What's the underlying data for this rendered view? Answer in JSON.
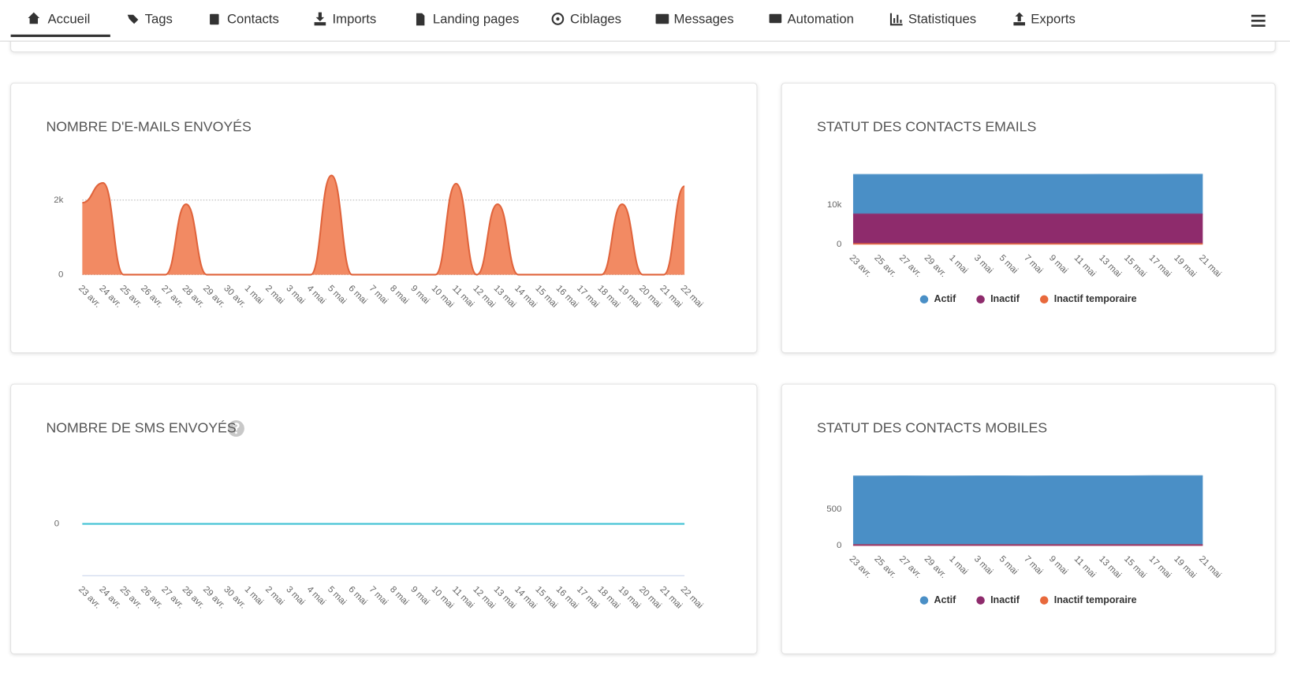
{
  "nav": {
    "items": [
      "Accueil",
      "Tags",
      "Contacts",
      "Imports",
      "Landing pages",
      "Ciblages",
      "Messages",
      "Automation",
      "Statistiques",
      "Exports"
    ]
  },
  "chart_data": [
    {
      "type": "area",
      "title": "NOMBRE D'E-MAILS ENVOYÉS",
      "categories": [
        "23 avr.",
        "24 avr.",
        "25 avr.",
        "26 avr.",
        "27 avr.",
        "28 avr.",
        "29 avr.",
        "30 avr.",
        "1 mai",
        "2 mai",
        "3 mai",
        "4 mai",
        "5 mai",
        "6 mai",
        "7 mai",
        "8 mai",
        "9 mai",
        "10 mai",
        "11 mai",
        "12 mai",
        "13 mai",
        "14 mai",
        "15 mai",
        "16 mai",
        "17 mai",
        "18 mai",
        "19 mai",
        "20 mai",
        "21 mai",
        "22 mai"
      ],
      "values": [
        1930,
        2460,
        0,
        0,
        0,
        1890,
        0,
        0,
        0,
        0,
        0,
        0,
        2660,
        0,
        0,
        0,
        0,
        0,
        2440,
        0,
        1890,
        0,
        0,
        0,
        0,
        0,
        1890,
        0,
        0,
        2370
      ],
      "color": "#f28a63",
      "ylim": [
        0,
        2800
      ],
      "yticks": [
        0,
        {
          "value": 2000,
          "label": "2k"
        }
      ],
      "grid": true
    },
    {
      "type": "area",
      "stacked": true,
      "title": "STATUT DES CONTACTS EMAILS",
      "categories": [
        "23 avr.",
        "25 avr.",
        "27 avr.",
        "29 avr.",
        "1 mai",
        "3 mai",
        "5 mai",
        "7 mai",
        "9 mai",
        "11 mai",
        "13 mai",
        "15 mai",
        "17 mai",
        "19 mai",
        "21 mai"
      ],
      "series": [
        {
          "name": "Actif",
          "color": "#4a8fc6",
          "values": [
            10000,
            10000,
            10000,
            10000,
            10000,
            10000,
            10000,
            10020,
            10020,
            10020,
            10040,
            10040,
            10040,
            10060,
            10060
          ]
        },
        {
          "name": "Inactif",
          "color": "#8e2b6c",
          "values": [
            7500,
            7500,
            7500,
            7500,
            7500,
            7500,
            7500,
            7500,
            7500,
            7500,
            7500,
            7500,
            7500,
            7500,
            7500
          ]
        },
        {
          "name": "Inactif temporaire",
          "color": "#e8693c",
          "values": [
            100,
            100,
            100,
            100,
            100,
            100,
            100,
            100,
            100,
            100,
            100,
            100,
            100,
            100,
            100
          ]
        }
      ],
      "ylim": [
        0,
        20000
      ],
      "yticks": [
        0,
        {
          "value": 10000,
          "label": "10k"
        }
      ],
      "grid": false
    },
    {
      "type": "line",
      "title": "NOMBRE DE SMS ENVOYÉS",
      "categories": [
        "23 avr.",
        "24 avr.",
        "25 avr.",
        "26 avr.",
        "27 avr.",
        "28 avr.",
        "29 avr.",
        "30 avr.",
        "1 mai",
        "2 mai",
        "3 mai",
        "4 mai",
        "5 mai",
        "6 mai",
        "7 mai",
        "8 mai",
        "9 mai",
        "10 mai",
        "11 mai",
        "12 mai",
        "13 mai",
        "14 mai",
        "15 mai",
        "16 mai",
        "17 mai",
        "18 mai",
        "19 mai",
        "20 mai",
        "21 mai",
        "22 mai"
      ],
      "values": [
        0,
        0,
        0,
        0,
        0,
        0,
        0,
        0,
        0,
        0,
        0,
        0,
        0,
        0,
        0,
        0,
        0,
        0,
        0,
        0,
        0,
        0,
        0,
        0,
        0,
        0,
        0,
        0,
        0,
        0
      ],
      "color": "#3ec1d3",
      "ylim": [
        -1,
        1
      ],
      "yticks": [
        0
      ],
      "grid": false
    },
    {
      "type": "area",
      "stacked": true,
      "title": "STATUT DES CONTACTS MOBILES",
      "categories": [
        "23 avr.",
        "25 avr.",
        "27 avr.",
        "29 avr.",
        "1 mai",
        "3 mai",
        "5 mai",
        "7 mai",
        "9 mai",
        "11 mai",
        "13 mai",
        "15 mai",
        "17 mai",
        "19 mai",
        "21 mai"
      ],
      "series": [
        {
          "name": "Actif",
          "color": "#4a8fc6",
          "values": [
            950,
            950,
            952,
            950,
            950,
            952,
            952,
            950,
            952,
            952,
            952,
            952,
            955,
            955,
            955
          ]
        },
        {
          "name": "Inactif",
          "color": "#8e2b6c",
          "values": [
            0,
            0,
            0,
            0,
            0,
            0,
            0,
            0,
            0,
            0,
            0,
            0,
            0,
            0,
            0
          ]
        },
        {
          "name": "Inactif temporaire",
          "color": "#e8693c",
          "values": [
            3,
            3,
            3,
            3,
            3,
            3,
            3,
            3,
            3,
            3,
            3,
            3,
            3,
            3,
            3
          ]
        }
      ],
      "ylim": [
        0,
        1000
      ],
      "yticks": [
        0,
        500
      ],
      "grid": false
    }
  ]
}
